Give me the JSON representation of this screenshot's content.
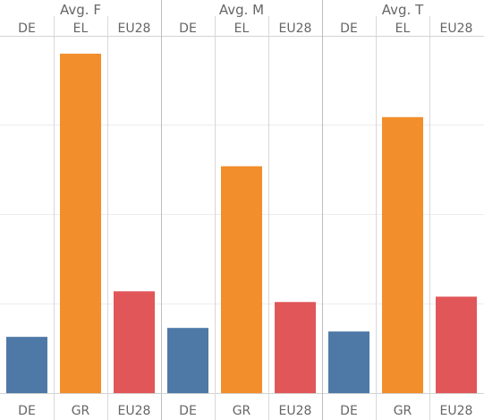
{
  "chart_data": {
    "type": "bar",
    "groups": [
      "Avg. F",
      "Avg. M",
      "Avg. T"
    ],
    "top_categories": [
      "DE",
      "EL",
      "EU28"
    ],
    "bottom_categories": [
      "DE",
      "GR",
      "EU28"
    ],
    "series": [
      {
        "group": "Avg. F",
        "values": [
          0.63,
          3.8,
          1.14
        ]
      },
      {
        "group": "Avg. M",
        "values": [
          0.73,
          2.54,
          1.02
        ]
      },
      {
        "group": "Avg. T",
        "values": [
          0.69,
          3.09,
          1.08
        ]
      }
    ],
    "ylim": [
      0,
      4.0
    ],
    "grid": true,
    "colors": {
      "DE": "#4e79a7",
      "EL": "#f28e2b",
      "EU28": "#e15759"
    }
  }
}
